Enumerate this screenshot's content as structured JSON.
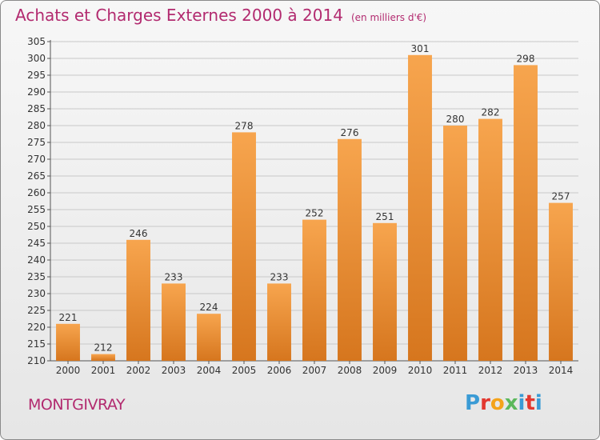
{
  "header": {
    "title": "Achats et Charges Externes 2000 à 2014",
    "unit": "(en milliers d'€)"
  },
  "footer": {
    "commune": "MONTGIVRAY",
    "logo_letters": [
      "P",
      "r",
      "o",
      "x",
      "i",
      "t",
      "i"
    ],
    "logo_colors": [
      "#3a9bd5",
      "#e2382f",
      "#f4a31a",
      "#5cb85c",
      "#3a9bd5",
      "#e2382f",
      "#3a9bd5"
    ]
  },
  "chart_data": {
    "type": "bar",
    "categories": [
      "2000",
      "2001",
      "2002",
      "2003",
      "2004",
      "2005",
      "2006",
      "2007",
      "2008",
      "2009",
      "2010",
      "2011",
      "2012",
      "2013",
      "2014"
    ],
    "values": [
      221,
      212,
      246,
      233,
      224,
      278,
      233,
      252,
      276,
      251,
      301,
      280,
      282,
      298,
      257
    ],
    "data_labels": [
      "221",
      "212",
      "246",
      "233",
      "224",
      "278",
      "233",
      "252",
      "276",
      "251",
      "301",
      "280",
      "282",
      "298",
      "257"
    ],
    "ylim": [
      210,
      305
    ],
    "yticks": [
      "210",
      "215",
      "220",
      "225",
      "230",
      "235",
      "240",
      "245",
      "250",
      "255",
      "260",
      "265",
      "270",
      "275",
      "280",
      "285",
      "290",
      "295",
      "300",
      "305"
    ],
    "grid": true,
    "bar_color_light": "#f7a54e",
    "bar_color_dark": "#d6761e",
    "xlabel": "",
    "ylabel": ""
  }
}
